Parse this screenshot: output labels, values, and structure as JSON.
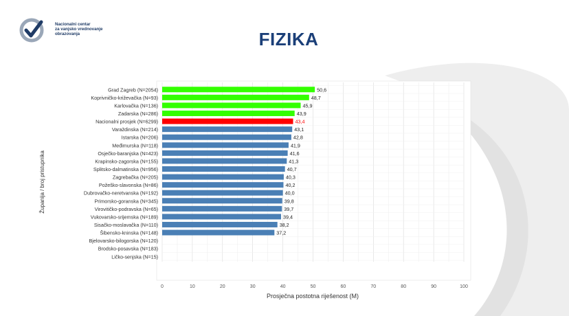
{
  "logo": {
    "line1": "Nacionalni centar",
    "line2": "za vanjsko vrednovanje",
    "line3": "obrazovanja"
  },
  "title": "FIZIKA",
  "colors": {
    "highlight": "#33ff00",
    "national": "#ff0000",
    "default": "#4a7fb5",
    "title": "#1b3f78"
  },
  "chart_data": {
    "type": "bar",
    "orientation": "horizontal",
    "xlabel": "Prosječna postotna riješenost (M)",
    "ylabel": "Županija / broj pristupnika",
    "xlim": [
      0,
      100
    ],
    "xticks": [
      0,
      10,
      20,
      30,
      40,
      50,
      60,
      70,
      80,
      90,
      100
    ],
    "grid": true,
    "categories": [
      "Grad Zagreb (N=2054)",
      "Koprivničko-križevačka (N=93)",
      "Karlovačka (N=136)",
      "Zadarska (N=286)",
      "Nacionalni prosjek (N=6299)",
      "Varaždinska (N=214)",
      "Istarska (N=206)",
      "Međimurska (N=118)",
      "Osječko-baranjska (N=423)",
      "Krapinsko-zagorska (N=155)",
      "Splitsko-dalmatinska (N=956)",
      "Zagrebačka (N=205)",
      "Požeško-slavonska (N=86)",
      "Dubrovačko-neretvanska (N=192)",
      "Primorsko-goranska (N=345)",
      "Virovitičko-podravska (N=65)",
      "Vukovarsko-srijemska (N=189)",
      "Sisačko-moslavačka (N=110)",
      "Šibensko-kninska (N=148)",
      "Bjelovarsko-bilogorska (N=120)",
      "Brodsko-posavska (N=183)",
      "Ličko-senjska (N=15)"
    ],
    "values": [
      50.6,
      48.7,
      45.9,
      43.9,
      43.4,
      43.1,
      42.8,
      41.9,
      41.6,
      41.3,
      40.7,
      40.3,
      40.2,
      40.0,
      39.8,
      39.7,
      39.4,
      38.2,
      37.2,
      null,
      null,
      null
    ],
    "labels": [
      "50,6",
      "48,7",
      "45,9",
      "43,9",
      "43,4",
      "43,1",
      "42,8",
      "41,9",
      "41,6",
      "41,3",
      "40,7",
      "40,3",
      "40,2",
      "40,0",
      "39,8",
      "39,7",
      "39,4",
      "38,2",
      "37,2",
      "",
      "",
      ""
    ],
    "bar_colors": [
      "highlight",
      "highlight",
      "highlight",
      "highlight",
      "national",
      "default",
      "default",
      "default",
      "default",
      "default",
      "default",
      "default",
      "default",
      "default",
      "default",
      "default",
      "default",
      "default",
      "default",
      "default",
      "default",
      "default"
    ]
  }
}
